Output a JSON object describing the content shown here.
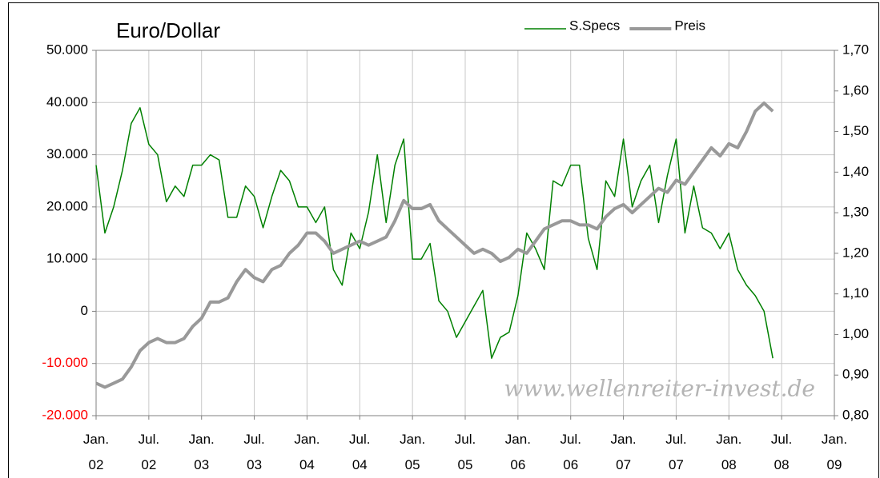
{
  "chart_data": {
    "type": "line",
    "title": "Euro/Dollar",
    "annotation": "www.wellenreiter-invest.de",
    "x": [
      "2002-01",
      "2002-02",
      "2002-03",
      "2002-04",
      "2002-05",
      "2002-06",
      "2002-07",
      "2002-08",
      "2002-09",
      "2002-10",
      "2002-11",
      "2002-12",
      "2003-01",
      "2003-02",
      "2003-03",
      "2003-04",
      "2003-05",
      "2003-06",
      "2003-07",
      "2003-08",
      "2003-09",
      "2003-10",
      "2003-11",
      "2003-12",
      "2004-01",
      "2004-02",
      "2004-03",
      "2004-04",
      "2004-05",
      "2004-06",
      "2004-07",
      "2004-08",
      "2004-09",
      "2004-10",
      "2004-11",
      "2004-12",
      "2005-01",
      "2005-02",
      "2005-03",
      "2005-04",
      "2005-05",
      "2005-06",
      "2005-07",
      "2005-08",
      "2005-09",
      "2005-10",
      "2005-11",
      "2005-12",
      "2006-01",
      "2006-02",
      "2006-03",
      "2006-04",
      "2006-05",
      "2006-06",
      "2006-07",
      "2006-08",
      "2006-09",
      "2006-10",
      "2006-11",
      "2006-12",
      "2007-01",
      "2007-02",
      "2007-03",
      "2007-04",
      "2007-05",
      "2007-06",
      "2007-07",
      "2007-08",
      "2007-09",
      "2007-10",
      "2007-11",
      "2007-12",
      "2008-01",
      "2008-02",
      "2008-03",
      "2008-04",
      "2008-05",
      "2008-06"
    ],
    "series": [
      {
        "name": "S.Specs",
        "color": "#008000",
        "width": 1.5,
        "axis": "y",
        "values": [
          28000,
          15000,
          20000,
          27000,
          36000,
          39000,
          32000,
          30000,
          21000,
          24000,
          22000,
          28000,
          28000,
          30000,
          29000,
          18000,
          18000,
          24000,
          22000,
          16000,
          22000,
          27000,
          25000,
          20000,
          20000,
          17000,
          20000,
          8000,
          5000,
          15000,
          12000,
          19000,
          30000,
          17000,
          28000,
          33000,
          10000,
          10000,
          13000,
          2000,
          0,
          -5000,
          -2000,
          1000,
          4000,
          -9000,
          -5000,
          -4000,
          3000,
          15000,
          12000,
          8000,
          25000,
          24000,
          28000,
          28000,
          14000,
          8000,
          25000,
          22000,
          33000,
          20000,
          25000,
          28000,
          17000,
          26000,
          33000,
          15000,
          24000,
          16000,
          15000,
          12000,
          15000,
          8000,
          5000,
          3000,
          0,
          -9000
        ]
      },
      {
        "name": "Preis",
        "color": "#999999",
        "width": 4,
        "axis": "y2",
        "values": [
          0.88,
          0.87,
          0.88,
          0.89,
          0.92,
          0.96,
          0.98,
          0.99,
          0.98,
          0.98,
          0.99,
          1.02,
          1.04,
          1.08,
          1.08,
          1.09,
          1.13,
          1.16,
          1.14,
          1.13,
          1.16,
          1.17,
          1.2,
          1.22,
          1.25,
          1.25,
          1.23,
          1.2,
          1.21,
          1.22,
          1.23,
          1.22,
          1.23,
          1.24,
          1.28,
          1.33,
          1.31,
          1.31,
          1.32,
          1.28,
          1.26,
          1.24,
          1.22,
          1.2,
          1.21,
          1.2,
          1.18,
          1.19,
          1.21,
          1.2,
          1.23,
          1.26,
          1.27,
          1.28,
          1.28,
          1.27,
          1.27,
          1.26,
          1.29,
          1.31,
          1.32,
          1.3,
          1.32,
          1.34,
          1.36,
          1.35,
          1.38,
          1.37,
          1.4,
          1.43,
          1.46,
          1.44,
          1.47,
          1.46,
          1.5,
          1.55,
          1.57,
          1.55
        ]
      }
    ],
    "xlim": [
      "2002-01",
      "2009-01"
    ],
    "xticks": [
      {
        "value": "2002-01",
        "label": "Jan. 02"
      },
      {
        "value": "2002-07",
        "label": "Jul. 02"
      },
      {
        "value": "2003-01",
        "label": "Jan. 03"
      },
      {
        "value": "2003-07",
        "label": "Jul. 03"
      },
      {
        "value": "2004-01",
        "label": "Jan. 04"
      },
      {
        "value": "2004-07",
        "label": "Jul. 04"
      },
      {
        "value": "2005-01",
        "label": "Jan. 05"
      },
      {
        "value": "2005-07",
        "label": "Jul. 05"
      },
      {
        "value": "2006-01",
        "label": "Jan. 06"
      },
      {
        "value": "2006-07",
        "label": "Jul. 06"
      },
      {
        "value": "2007-01",
        "label": "Jan. 07"
      },
      {
        "value": "2007-07",
        "label": "Jul. 07"
      },
      {
        "value": "2008-01",
        "label": "Jan. 08"
      },
      {
        "value": "2008-07",
        "label": "Jul. 08"
      },
      {
        "value": "2009-01",
        "label": "Jan. 09"
      }
    ],
    "ylim": [
      -20000,
      50000
    ],
    "yticks": [
      {
        "value": -20000,
        "label": "-20.000"
      },
      {
        "value": -10000,
        "label": "-10.000"
      },
      0,
      {
        "value": 10000,
        "label": "10.000"
      },
      {
        "value": 20000,
        "label": "20.000"
      },
      {
        "value": 30000,
        "label": "30.000"
      },
      {
        "value": 40000,
        "label": "40.000"
      },
      {
        "value": 50000,
        "label": "50.000"
      }
    ],
    "negative_tick_color": "#ff0000",
    "y2lim": [
      0.8,
      1.7
    ],
    "y2ticks": [
      {
        "value": 0.8,
        "label": "0,80"
      },
      {
        "value": 0.9,
        "label": "0,90"
      },
      {
        "value": 1.0,
        "label": "1,00"
      },
      {
        "value": 1.1,
        "label": "1,10"
      },
      {
        "value": 1.2,
        "label": "1,20"
      },
      {
        "value": 1.3,
        "label": "1,30"
      },
      {
        "value": 1.4,
        "label": "1,40"
      },
      {
        "value": 1.5,
        "label": "1,50"
      },
      {
        "value": 1.6,
        "label": "1,60"
      },
      {
        "value": 1.7,
        "label": "1,70"
      }
    ],
    "grid": true,
    "legend": "top-right"
  }
}
